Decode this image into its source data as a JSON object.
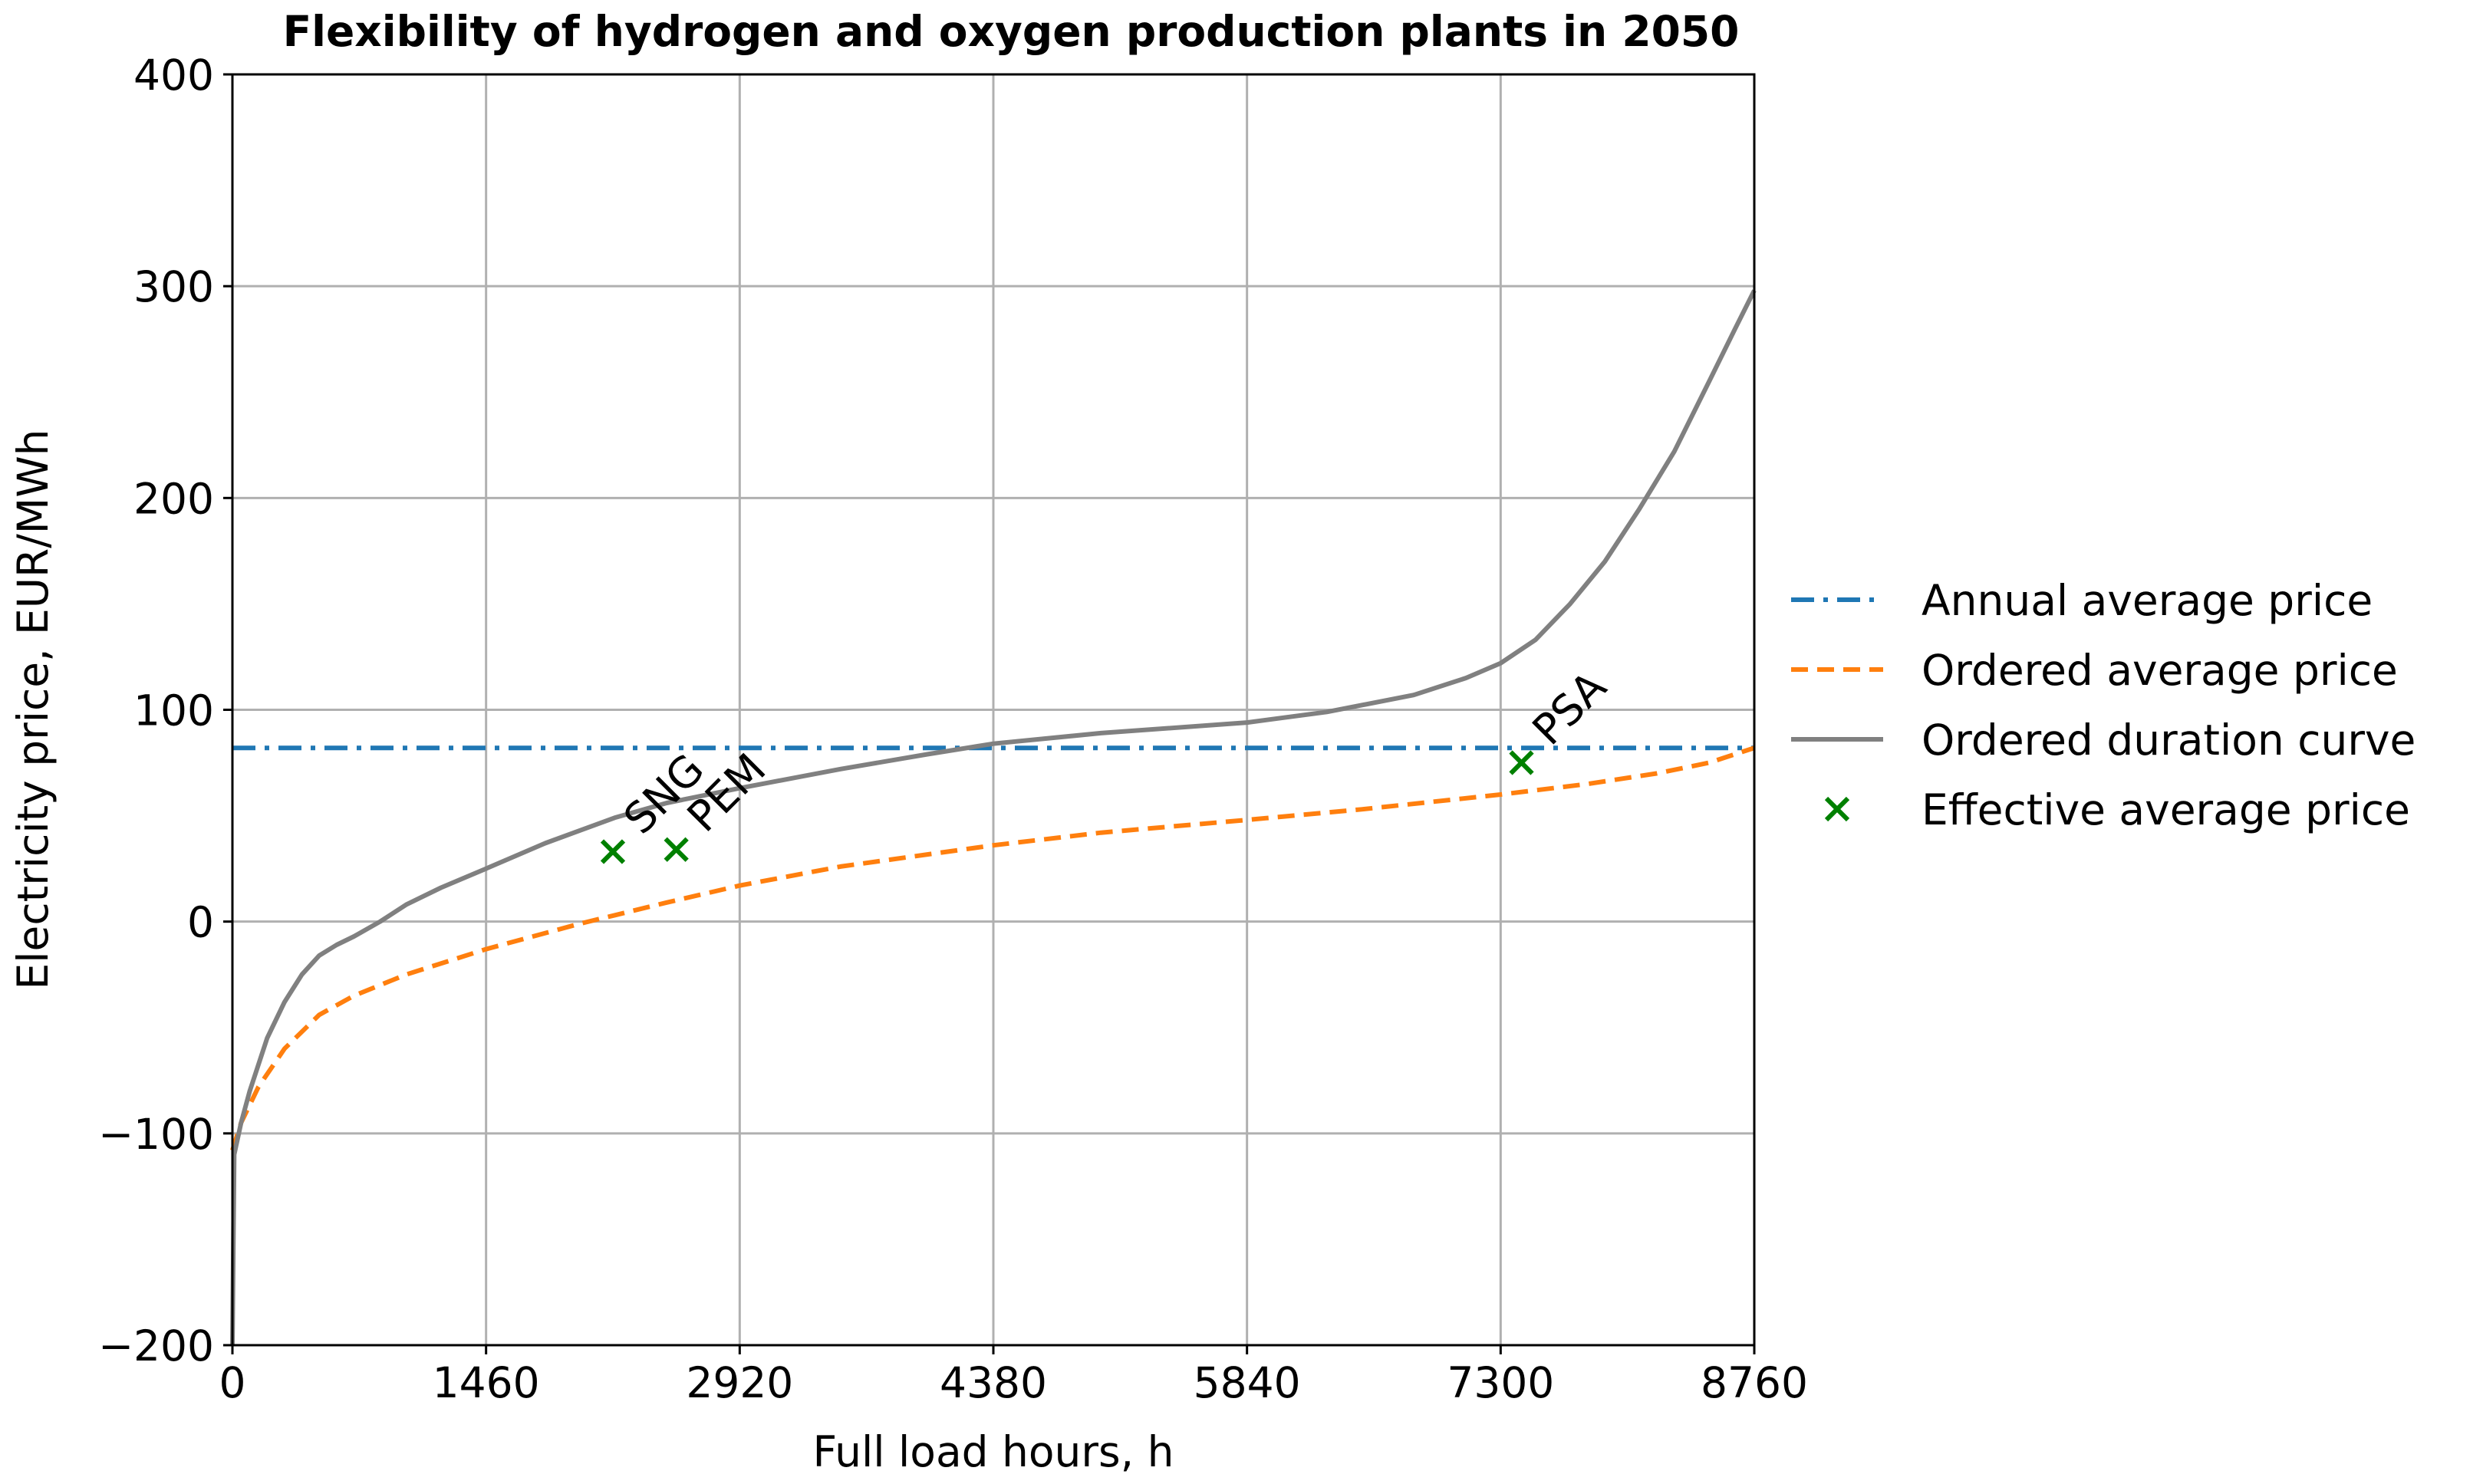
{
  "chart_data": {
    "type": "line",
    "title": "Flexibility of hydrogen and oxygen production plants in 2050",
    "xlabel": "Full load hours, h",
    "ylabel": "Electricity price, EUR/MWh",
    "xlim": [
      0,
      8760
    ],
    "ylim": [
      -200,
      400
    ],
    "xticks": [
      0,
      1460,
      2920,
      4380,
      5840,
      7300,
      8760
    ],
    "xtick_labels": [
      "0",
      "1460",
      "2920",
      "4380",
      "5840",
      "7300",
      "8760"
    ],
    "yticks": [
      -200,
      -100,
      0,
      100,
      200,
      300,
      400
    ],
    "ytick_labels": [
      "−200",
      "−100",
      "0",
      "100",
      "200",
      "300",
      "400"
    ],
    "grid": true,
    "legend_position": "right",
    "series": [
      {
        "name": "Annual average price",
        "style": "dash-dot",
        "color": "#1f77b4",
        "x": [
          0,
          8760
        ],
        "y": [
          82,
          82
        ]
      },
      {
        "name": "Ordered average price",
        "style": "dashed",
        "color": "#ff7f0e",
        "x": [
          0,
          50,
          150,
          300,
          500,
          700,
          1000,
          1460,
          2000,
          2200,
          2500,
          2920,
          3500,
          4380,
          5000,
          5840,
          6500,
          7300,
          7800,
          8200,
          8500,
          8760
        ],
        "y": [
          -108,
          -95,
          -78,
          -60,
          -44,
          -35,
          -25,
          -13,
          -1,
          3,
          9,
          17,
          26,
          36,
          42,
          48,
          53,
          60,
          65,
          70,
          75,
          82
        ]
      },
      {
        "name": "Ordered duration curve",
        "style": "solid",
        "color": "#808080",
        "x": [
          0,
          10,
          50,
          100,
          200,
          300,
          400,
          500,
          600,
          700,
          850,
          1000,
          1200,
          1460,
          1800,
          2200,
          2500,
          2920,
          3500,
          4000,
          4380,
          5000,
          5840,
          6300,
          6800,
          7100,
          7300,
          7500,
          7700,
          7900,
          8100,
          8300,
          8500,
          8650,
          8760
        ],
        "y": [
          -200,
          -110,
          -95,
          -80,
          -55,
          -38,
          -25,
          -16,
          -11,
          -7,
          0,
          8,
          16,
          25,
          37,
          49,
          56,
          63,
          72,
          79,
          84,
          89,
          94,
          99,
          107,
          115,
          122,
          133,
          150,
          170,
          195,
          222,
          255,
          280,
          298
        ]
      },
      {
        "name": "Effective average price",
        "style": "marker-x",
        "color": "#008000",
        "points": [
          {
            "label": "SNG",
            "x": 2190,
            "y": 33
          },
          {
            "label": "PEM",
            "x": 2555,
            "y": 34
          },
          {
            "label": "PSA",
            "x": 7420,
            "y": 75
          }
        ]
      }
    ]
  }
}
